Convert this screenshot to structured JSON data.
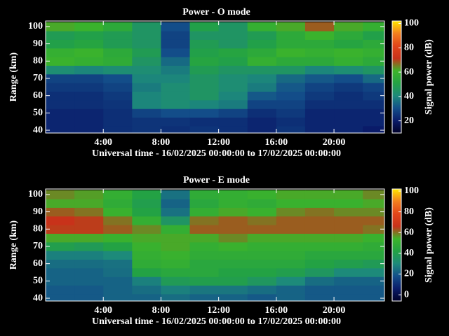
{
  "chart_data": [
    {
      "type": "heatmap",
      "title": "Power - O mode",
      "xlabel": "Universal time - 16/02/2025 00:00:00 to 17/02/2025 00:00:00",
      "ylabel": "Range (km)",
      "colorbar_label": "Signal power (dB)",
      "x": [
        1,
        3,
        5,
        7,
        9,
        11,
        13,
        15,
        17,
        19,
        21,
        23
      ],
      "y": [
        40,
        45,
        50,
        55,
        60,
        65,
        70,
        75,
        80,
        85,
        90,
        95,
        100
      ],
      "z": [
        [
          22,
          22,
          24,
          25,
          24,
          25,
          24,
          22,
          25,
          22,
          22,
          20
        ],
        [
          22,
          22,
          24,
          25,
          25,
          24,
          24,
          22,
          24,
          22,
          22,
          22
        ],
        [
          22,
          22,
          24,
          28,
          30,
          30,
          28,
          24,
          26,
          22,
          22,
          22
        ],
        [
          24,
          24,
          25,
          40,
          42,
          40,
          38,
          28,
          28,
          24,
          24,
          24
        ],
        [
          24,
          24,
          26,
          40,
          42,
          45,
          40,
          32,
          30,
          26,
          24,
          26
        ],
        [
          26,
          26,
          28,
          38,
          42,
          45,
          42,
          38,
          32,
          28,
          26,
          28
        ],
        [
          28,
          28,
          30,
          40,
          40,
          45,
          42,
          40,
          35,
          32,
          30,
          35
        ],
        [
          42,
          40,
          42,
          42,
          38,
          48,
          45,
          45,
          45,
          40,
          42,
          45
        ],
        [
          60,
          58,
          56,
          45,
          35,
          52,
          50,
          58,
          55,
          55,
          58,
          55
        ],
        [
          58,
          60,
          55,
          48,
          30,
          50,
          52,
          55,
          60,
          58,
          60,
          58
        ],
        [
          50,
          52,
          48,
          45,
          28,
          48,
          45,
          50,
          55,
          55,
          52,
          55
        ],
        [
          48,
          50,
          48,
          45,
          28,
          45,
          45,
          48,
          55,
          60,
          55,
          50
        ],
        [
          62,
          60,
          55,
          45,
          30,
          50,
          45,
          58,
          62,
          68,
          62,
          58
        ]
      ],
      "xlim": [
        0,
        23.5
      ],
      "ylim": [
        38.4,
        103.2
      ],
      "xticks": [
        {
          "value": 4,
          "label": "4:00"
        },
        {
          "value": 8,
          "label": "8:00"
        },
        {
          "value": 12,
          "label": "12:00"
        },
        {
          "value": 16,
          "label": "16:00"
        },
        {
          "value": 20,
          "label": "20:00"
        }
      ],
      "yticks": [
        40,
        50,
        60,
        70,
        80,
        90,
        100
      ],
      "clim": [
        10,
        102
      ],
      "cticks": [
        20,
        40,
        60,
        80,
        100
      ],
      "colorscale": [
        "#000028",
        "#0a1c6a",
        "#134f8a",
        "#1d8a7a",
        "#23a244",
        "#3db42a",
        "#c8321a",
        "#e2451a",
        "#f27e1e",
        "#ffe800"
      ]
    },
    {
      "type": "heatmap",
      "title": "Power - E mode",
      "xlabel": "Universal time - 16/02/2025 00:00:00 to 17/02/2025 00:00:00",
      "ylabel": "Range (km)",
      "colorbar_label": "Signal power (dB)",
      "x": [
        1,
        3,
        5,
        7,
        9,
        11,
        13,
        15,
        17,
        19,
        21,
        23
      ],
      "y": [
        40,
        45,
        50,
        55,
        60,
        65,
        70,
        75,
        80,
        85,
        90,
        95,
        100
      ],
      "z": [
        [
          20,
          20,
          22,
          22,
          24,
          22,
          22,
          20,
          22,
          20,
          20,
          20
        ],
        [
          20,
          20,
          22,
          24,
          28,
          26,
          26,
          24,
          22,
          20,
          20,
          20
        ],
        [
          22,
          22,
          22,
          28,
          38,
          40,
          40,
          36,
          30,
          24,
          22,
          22
        ],
        [
          22,
          22,
          24,
          42,
          45,
          45,
          42,
          42,
          40,
          36,
          30,
          30
        ],
        [
          24,
          24,
          25,
          48,
          50,
          45,
          45,
          45,
          45,
          42,
          40,
          38
        ],
        [
          28,
          28,
          30,
          50,
          52,
          48,
          48,
          48,
          48,
          45,
          45,
          45
        ],
        [
          40,
          38,
          42,
          52,
          55,
          50,
          52,
          50,
          50,
          50,
          50,
          48
        ],
        [
          55,
          55,
          52,
          55,
          55,
          55,
          58,
          55,
          55,
          55,
          55,
          52
        ],
        [
          65,
          65,
          62,
          58,
          50,
          62,
          62,
          62,
          62,
          62,
          62,
          60
        ],
        [
          66,
          65,
          60,
          50,
          35,
          60,
          62,
          60,
          62,
          62,
          62,
          62
        ],
        [
          62,
          60,
          52,
          42,
          25,
          50,
          55,
          52,
          58,
          60,
          58,
          58
        ],
        [
          55,
          55,
          48,
          40,
          22,
          45,
          50,
          48,
          52,
          52,
          52,
          55
        ],
        [
          58,
          56,
          50,
          42,
          25,
          48,
          50,
          52,
          55,
          55,
          55,
          58
        ]
      ],
      "xlim": [
        0,
        23.5
      ],
      "ylim": [
        38.4,
        103.2
      ],
      "xticks": [
        {
          "value": 4,
          "label": "4:00"
        },
        {
          "value": 8,
          "label": "8:00"
        },
        {
          "value": 12,
          "label": "12:00"
        },
        {
          "value": 16,
          "label": "16:00"
        },
        {
          "value": 20,
          "label": "20:00"
        }
      ],
      "yticks": [
        40,
        50,
        60,
        70,
        80,
        90,
        100
      ],
      "clim": [
        -6,
        102
      ],
      "cticks": [
        0,
        20,
        40,
        60,
        80,
        100
      ],
      "colorscale": [
        "#000028",
        "#0a1c6a",
        "#134f8a",
        "#1d8a7a",
        "#23a244",
        "#3db42a",
        "#c8321a",
        "#e2451a",
        "#f27e1e",
        "#ffe800"
      ]
    }
  ]
}
